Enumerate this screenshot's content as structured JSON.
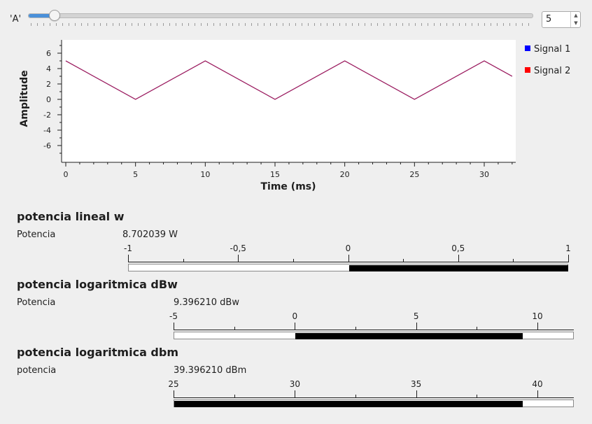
{
  "slider": {
    "label": "'A'",
    "value": "5"
  },
  "plot": {
    "xlabel": "Time (ms)",
    "ylabel": "Amplitude",
    "legend": [
      "Signal 1",
      "Signal 2"
    ],
    "colors": {
      "signal1": "#0000ff",
      "signal2": "#ff0000",
      "trace": "#b0204a"
    }
  },
  "chart_data": {
    "type": "line",
    "title": "",
    "xlabel": "Time (ms)",
    "ylabel": "Amplitude",
    "xlim": [
      0,
      32
    ],
    "ylim": [
      -7,
      7
    ],
    "x_ticks": [
      "0",
      "5",
      "10",
      "15",
      "20",
      "25",
      "30"
    ],
    "y_ticks": [
      "6",
      "4",
      "2",
      "0",
      "-2",
      "-4",
      "-6"
    ],
    "legend_position": "right",
    "series": [
      {
        "name": "Signal 1",
        "x": [
          0,
          5,
          10,
          15,
          20,
          25,
          30,
          32
        ],
        "y": [
          5,
          0,
          5,
          0,
          5,
          0,
          5,
          3
        ]
      },
      {
        "name": "Signal 2",
        "x": [
          0,
          5,
          10,
          15,
          20,
          25,
          30,
          32
        ],
        "y": [
          5,
          0,
          5,
          0,
          5,
          0,
          5,
          3
        ]
      }
    ]
  },
  "gauges": [
    {
      "title": "potencia lineal w",
      "name": "Potencia",
      "value_text": "8.702039 W",
      "min": -1,
      "max": 1,
      "fill_from": 0,
      "fill_to": 1,
      "scale": [
        "-1",
        "-0,5",
        "0",
        "0,5",
        "1"
      ]
    },
    {
      "title": "potencia logaritmica dBw",
      "name": "Potencia",
      "value_text": "9.396210 dBw",
      "min": -5,
      "max": 11.5,
      "fill_from": 0,
      "fill_to": 9.39621,
      "scale": [
        "-5",
        "0",
        "5",
        "10"
      ]
    },
    {
      "title": "potencia logaritmica dbm",
      "name": "potencia",
      "value_text": "39.396210 dBm",
      "min": 25,
      "max": 41.5,
      "fill_from": 25,
      "fill_to": 39.39621,
      "scale": [
        "25",
        "30",
        "35",
        "40"
      ]
    }
  ]
}
